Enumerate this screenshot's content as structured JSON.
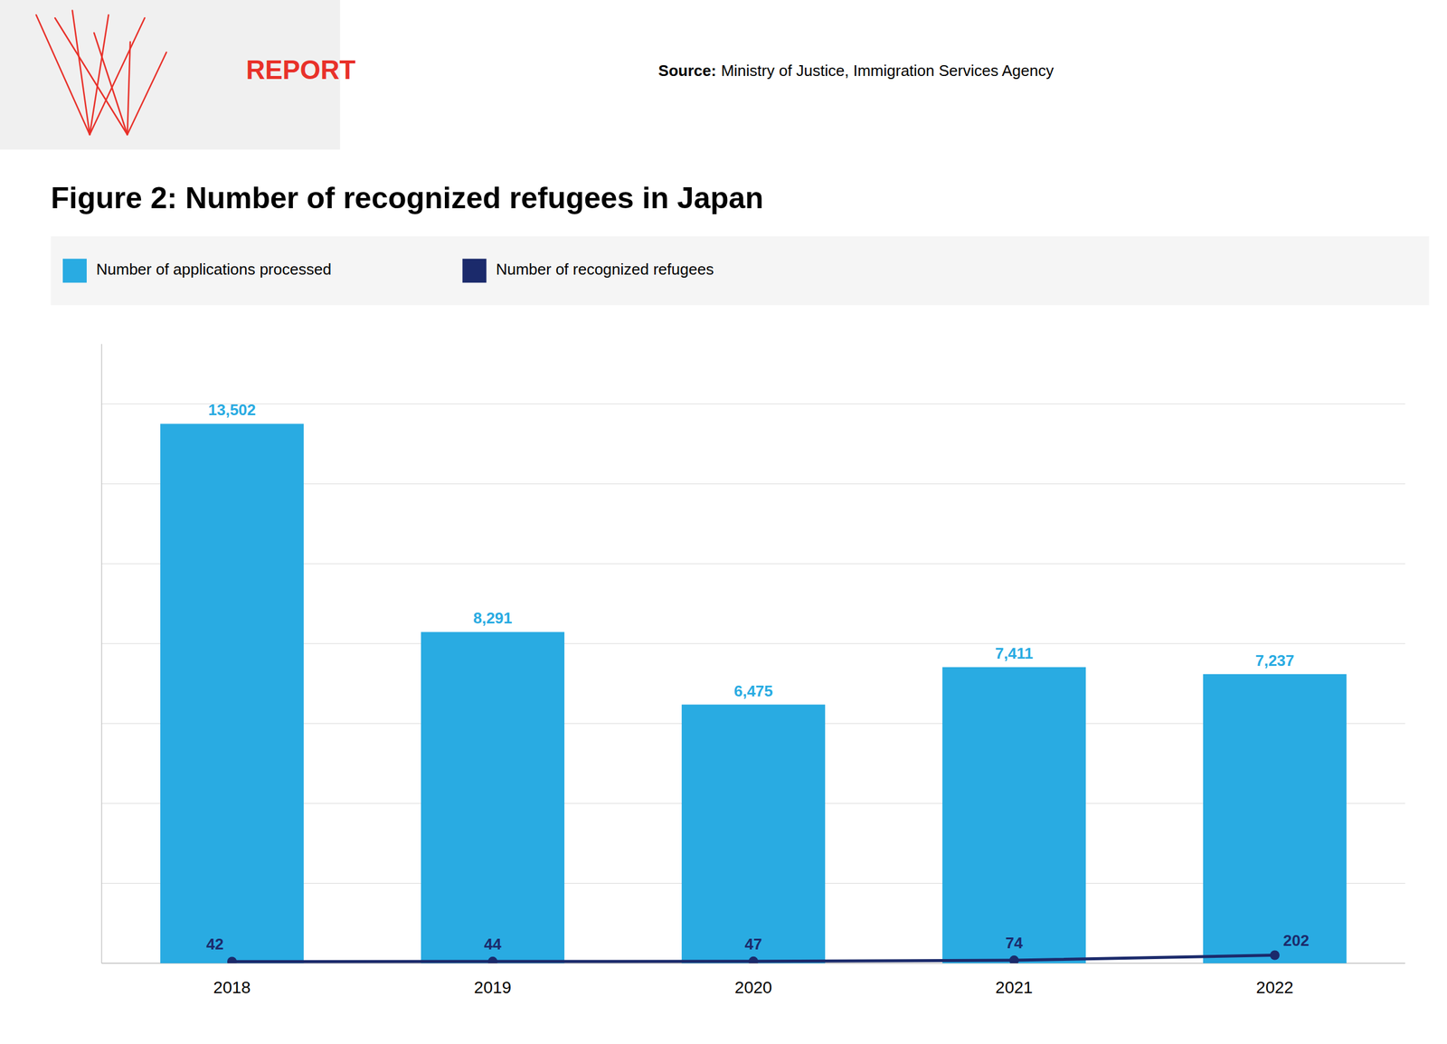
{
  "chart_data": {
    "type": "bar",
    "title": "Figure 2: Number of recognized refugees in Japan",
    "annotations": [
      {
        "text": "REPORT",
        "color": "#E8312A"
      },
      {
        "text": "Source:"
      },
      {
        "text": "Ministry of Justice, Immigration Services Agency"
      }
    ],
    "categories": [
      "2018",
      "2019",
      "2020",
      "2021",
      "2022"
    ],
    "series": [
      {
        "name": "Number of applications processed",
        "type": "bar",
        "color": "#29ABE2",
        "values": [
          13502,
          8291,
          6475,
          7411,
          7237
        ],
        "value_labels": [
          "13,502",
          "8,291",
          "6,475",
          "7,411",
          "7,237"
        ]
      },
      {
        "name": "Number of recognized refugees",
        "type": "line",
        "color": "#1B2A6B",
        "marker": "circle",
        "values": [
          42,
          44,
          47,
          74,
          202
        ]
      }
    ],
    "ylim": [
      0,
      15500
    ],
    "yticks": [
      0,
      2000,
      4000,
      6000,
      8000,
      10000,
      12000,
      14000
    ],
    "grid": true,
    "legend": "top",
    "data_labels": true,
    "tick_labels": "x"
  }
}
